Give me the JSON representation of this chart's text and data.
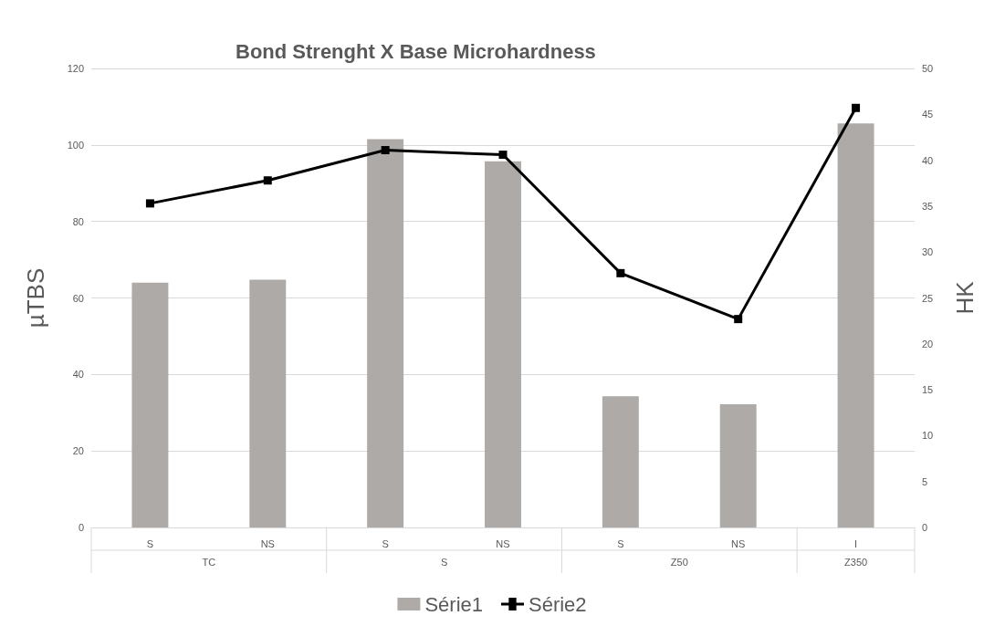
{
  "chart_data": {
    "type": "bar",
    "title": "Bond Strenght X Base Microhardness",
    "ylabel": "µTBS",
    "y2label": "HK",
    "categories": [
      "S",
      "NS",
      "S",
      "NS",
      "S",
      "NS",
      "I"
    ],
    "annotations": [
      "TC",
      "S",
      "Z50",
      "Z350"
    ],
    "series": [
      {
        "name": "Série1",
        "color": "#aeaaa7",
        "values": [
          64,
          64.8,
          101.5,
          95.7,
          34.3,
          32.2,
          105.6
        ]
      },
      {
        "name": "Série2",
        "type": "line",
        "axis": "y2",
        "color": "#000000",
        "marker": "square",
        "values": [
          35.3,
          37.8,
          41.1,
          40.6,
          27.7,
          22.7,
          45.7
        ]
      }
    ],
    "ylim": [
      0,
      120
    ],
    "yticks": [
      0,
      20,
      40,
      60,
      80,
      100,
      120
    ],
    "y2lim": [
      0,
      50
    ],
    "y2ticks": [
      0,
      5,
      10,
      15,
      20,
      25,
      30,
      35,
      40,
      45,
      50
    ],
    "grid": "y",
    "legend": "bottom"
  }
}
